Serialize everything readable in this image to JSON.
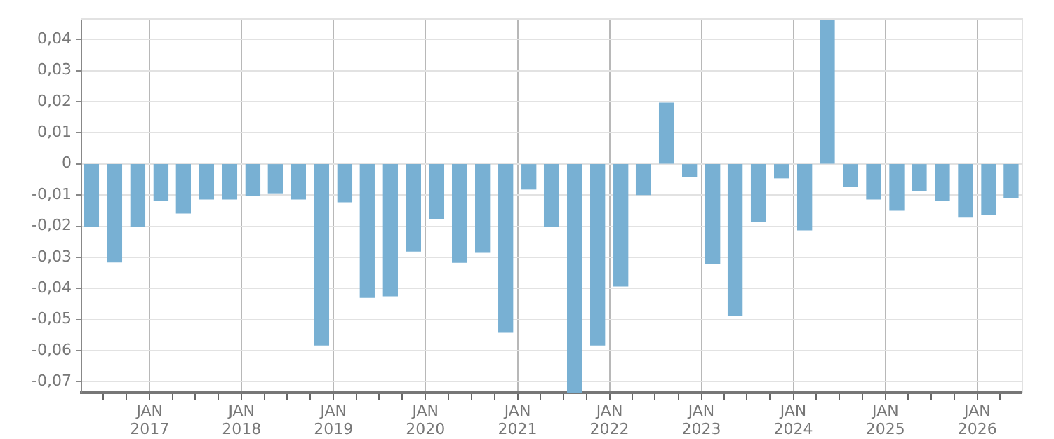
{
  "chart_data": {
    "type": "bar",
    "color": "#78b0d3",
    "x": [
      "2016-05-15",
      "2016-08-15",
      "2016-11-15",
      "2017-02-15",
      "2017-05-15",
      "2017-08-15",
      "2017-11-15",
      "2018-02-15",
      "2018-05-15",
      "2018-08-15",
      "2018-11-15",
      "2019-02-15",
      "2019-05-15",
      "2019-08-15",
      "2019-11-15",
      "2020-02-15",
      "2020-05-15",
      "2020-08-15",
      "2020-11-15",
      "2021-02-15",
      "2021-05-15",
      "2021-08-15",
      "2021-11-15",
      "2022-02-15",
      "2022-05-15",
      "2022-08-15",
      "2022-11-15",
      "2023-02-15",
      "2023-05-15",
      "2023-08-15",
      "2023-11-15",
      "2024-02-15",
      "2024-05-15",
      "2024-08-15",
      "2024-11-15",
      "2025-02-15",
      "2025-05-15",
      "2025-08-15",
      "2025-11-15",
      "2026-02-15",
      "2026-05-15"
    ],
    "values": [
      -0.02,
      -0.0315,
      -0.02,
      -0.0116,
      -0.0158,
      -0.0113,
      -0.0113,
      -0.0102,
      -0.0093,
      -0.0113,
      -0.0582,
      -0.0122,
      -0.0429,
      -0.0424,
      -0.028,
      -0.0176,
      -0.0316,
      -0.0284,
      -0.0541,
      -0.0081,
      -0.02,
      -0.0735,
      -0.0582,
      -0.0392,
      -0.0099,
      0.0195,
      -0.0041,
      -0.032,
      -0.0487,
      -0.0185,
      -0.0045,
      -0.0212,
      0.0468,
      -0.0072,
      -0.0113,
      -0.0149,
      -0.0086,
      -0.0117,
      -0.0171,
      -0.0162,
      -0.0108
    ],
    "xlim": [
      "2016-04-05",
      "2026-06-26"
    ],
    "xticks": [
      {
        "value": "2016-07-01",
        "label": null
      },
      {
        "value": "2016-10-01",
        "label": null
      },
      {
        "value": "2017-01-01",
        "label": "JAN 2017"
      },
      {
        "value": "2017-04-01",
        "label": null
      },
      {
        "value": "2017-07-01",
        "label": null
      },
      {
        "value": "2017-10-01",
        "label": null
      },
      {
        "value": "2018-01-01",
        "label": "JAN 2018"
      },
      {
        "value": "2018-04-01",
        "label": null
      },
      {
        "value": "2018-07-01",
        "label": null
      },
      {
        "value": "2018-10-01",
        "label": null
      },
      {
        "value": "2019-01-01",
        "label": "JAN 2019"
      },
      {
        "value": "2019-04-01",
        "label": null
      },
      {
        "value": "2019-07-01",
        "label": null
      },
      {
        "value": "2019-10-01",
        "label": null
      },
      {
        "value": "2020-01-01",
        "label": "JAN 2020"
      },
      {
        "value": "2020-04-01",
        "label": null
      },
      {
        "value": "2020-07-01",
        "label": null
      },
      {
        "value": "2020-10-01",
        "label": null
      },
      {
        "value": "2021-01-01",
        "label": "JAN 2021"
      },
      {
        "value": "2021-04-01",
        "label": null
      },
      {
        "value": "2021-07-01",
        "label": null
      },
      {
        "value": "2021-10-01",
        "label": null
      },
      {
        "value": "2022-01-01",
        "label": "JAN 2022"
      },
      {
        "value": "2022-04-01",
        "label": null
      },
      {
        "value": "2022-07-01",
        "label": null
      },
      {
        "value": "2022-10-01",
        "label": null
      },
      {
        "value": "2023-01-01",
        "label": "JAN 2023"
      },
      {
        "value": "2023-04-01",
        "label": null
      },
      {
        "value": "2023-07-01",
        "label": null
      },
      {
        "value": "2023-10-01",
        "label": null
      },
      {
        "value": "2024-01-01",
        "label": "JAN 2024"
      },
      {
        "value": "2024-04-01",
        "label": null
      },
      {
        "value": "2024-07-01",
        "label": null
      },
      {
        "value": "2024-10-01",
        "label": null
      },
      {
        "value": "2025-01-01",
        "label": "JAN 2025"
      },
      {
        "value": "2025-04-01",
        "label": null
      },
      {
        "value": "2025-07-01",
        "label": null
      },
      {
        "value": "2025-10-01",
        "label": null
      },
      {
        "value": "2026-01-01",
        "label": "JAN 2026"
      },
      {
        "value": "2026-04-01",
        "label": null
      }
    ],
    "ylim": [
      -0.0735,
      0.0468
    ],
    "yticks": [
      {
        "value": -0.07,
        "label": "-0,07"
      },
      {
        "value": -0.06,
        "label": "-0,06"
      },
      {
        "value": -0.05,
        "label": "-0,05"
      },
      {
        "value": -0.04,
        "label": "-0,04"
      },
      {
        "value": -0.03,
        "label": "-0,03"
      },
      {
        "value": -0.02,
        "label": "-0,02"
      },
      {
        "value": -0.01,
        "label": "-0,01"
      },
      0,
      {
        "value": 0.01,
        "label": "0,01"
      },
      {
        "value": 0.02,
        "label": "0,02"
      },
      {
        "value": 0.03,
        "label": "0,03"
      },
      {
        "value": 0.04,
        "label": "0,04"
      }
    ],
    "grid": true,
    "legend": false
  }
}
